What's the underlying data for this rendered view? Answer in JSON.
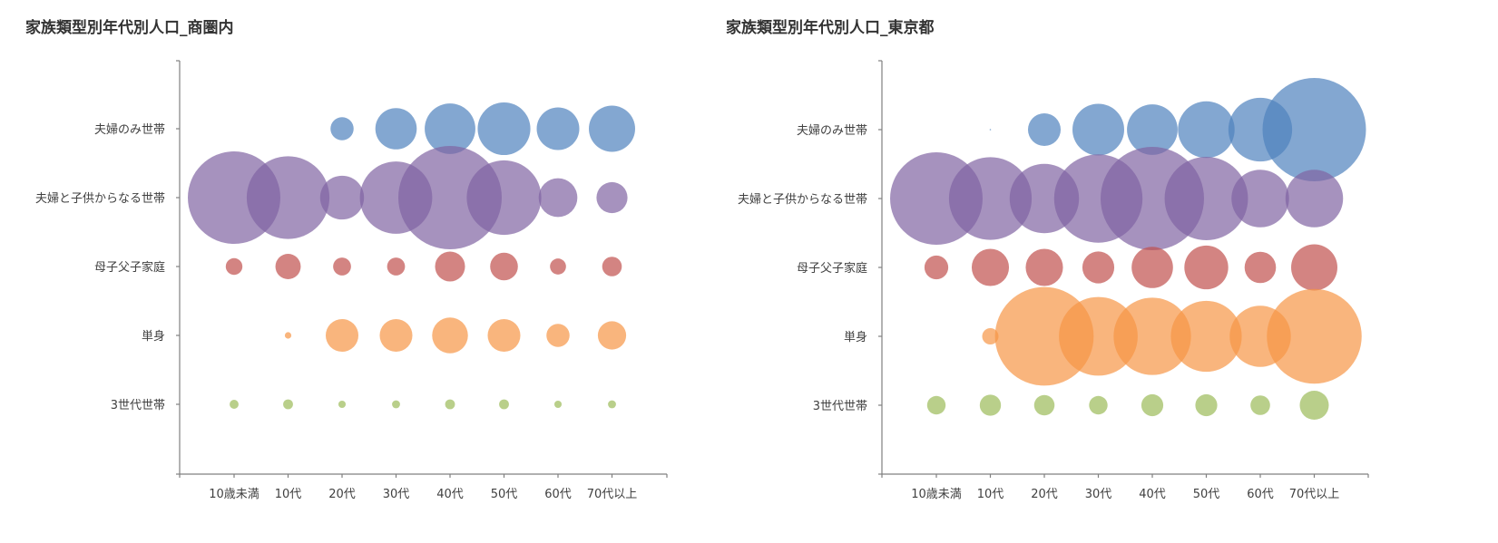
{
  "chart_data": [
    {
      "type": "bubble",
      "title": "家族類型別年代別人口_商圏内",
      "x_categories": [
        "10歳未満",
        "10代",
        "20代",
        "30代",
        "40代",
        "50代",
        "60代",
        "70代以上"
      ],
      "y_categories": [
        "夫婦のみ世帯",
        "夫婦と子供からなる世帯",
        "母子父子家庭",
        "単身",
        "3世代世帯"
      ],
      "size_max": 100,
      "series": [
        {
          "name": "夫婦のみ世帯",
          "color": "#4F81BD",
          "values": [
            0,
            0,
            5,
            16,
            24,
            26,
            17,
            20
          ]
        },
        {
          "name": "夫婦と子供からなる世帯",
          "color": "#8064A2",
          "values": [
            80,
            64,
            18,
            49,
            100,
            52,
            14,
            9
          ]
        },
        {
          "name": "母子父子家庭",
          "color": "#C0504D",
          "values": [
            2.6,
            6,
            3,
            3,
            8.4,
            7.2,
            2.4,
            3.6
          ]
        },
        {
          "name": "単身",
          "color": "#F79646",
          "values": [
            0,
            0.4,
            10,
            10,
            12,
            10,
            5,
            7.5
          ]
        },
        {
          "name": "3世代世帯",
          "color": "#9BBB59",
          "values": [
            0.75,
            0.9,
            0.5,
            0.6,
            0.9,
            0.9,
            0.5,
            0.6
          ]
        }
      ]
    },
    {
      "type": "bubble",
      "title": "家族類型別年代別人口_東京都",
      "x_categories": [
        "10歳未満",
        "10代",
        "20代",
        "30代",
        "40代",
        "50代",
        "60代",
        "70代以上"
      ],
      "y_categories": [
        "夫婦のみ世帯",
        "夫婦と子供からなる世帯",
        "母子父子家庭",
        "単身",
        "3世代世帯"
      ],
      "size_max": 100,
      "series": [
        {
          "name": "夫婦のみ世帯",
          "color": "#4F81BD",
          "values": [
            0,
            0.02,
            10,
            25,
            24,
            30,
            38,
            100
          ]
        },
        {
          "name": "夫婦と子供からなる世帯",
          "color": "#8064A2",
          "values": [
            80,
            64,
            45,
            73,
            100,
            65,
            31,
            31
          ]
        },
        {
          "name": "母子父子家庭",
          "color": "#C0504D",
          "values": [
            5.3,
            13,
            13,
            9.5,
            16,
            18,
            9.2,
            20
          ]
        },
        {
          "name": "単身",
          "color": "#F79646",
          "values": [
            0,
            2.5,
            91,
            58,
            56,
            47,
            35,
            84
          ]
        },
        {
          "name": "3世代世帯",
          "color": "#9BBB59",
          "values": [
            3.2,
            4.2,
            3.9,
            3.2,
            4.5,
            4.5,
            3.6,
            7.9
          ]
        }
      ]
    }
  ]
}
